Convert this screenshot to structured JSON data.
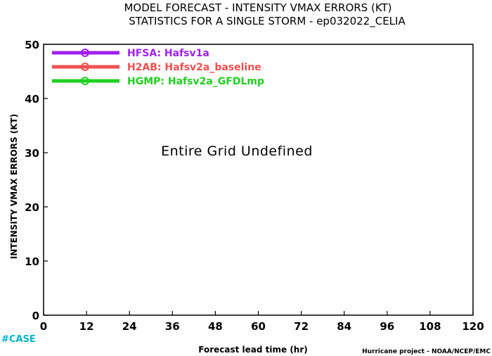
{
  "chart_data": {
    "type": "line",
    "title_line1": "MODEL FORECAST - INTENSITY VMAX ERRORS (KT)",
    "title_line2": "STATISTICS FOR A SINGLE STORM - ep032022_CELIA",
    "xlabel": "Forecast lead time (hr)",
    "ylabel": "INTENSITY VMAX ERRORS (KT)",
    "xlim": [
      0,
      120
    ],
    "ylim": [
      0,
      50
    ],
    "x_ticks": [
      "0",
      "12",
      "24",
      "36",
      "48",
      "60",
      "72",
      "84",
      "96",
      "108",
      "120"
    ],
    "y_ticks": [
      "0",
      "10",
      "20",
      "30",
      "40",
      "50"
    ],
    "grid": false,
    "legend_position": "top-left",
    "series": [
      {
        "name": "HFSA: Hafsv1a",
        "color": "#a020f0",
        "values": []
      },
      {
        "name": "H2AB: Hafsv2a_baseline",
        "color": "#f05050",
        "values": []
      },
      {
        "name": "HGMP: Hafsv2a_GFDLmp",
        "color": "#20d020",
        "values": []
      }
    ],
    "annotation": "Entire Grid Undefined"
  },
  "footer": {
    "case_label": "#CASE",
    "credit": "Hurricane project - NOAA/NCEP/EMC"
  }
}
